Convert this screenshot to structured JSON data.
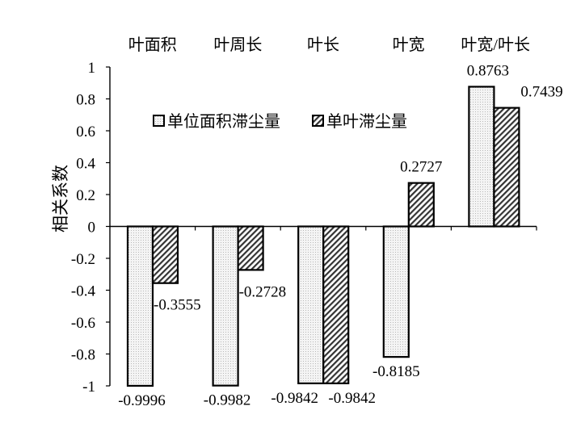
{
  "chart_data": {
    "type": "bar",
    "categories": [
      "叶面积",
      "叶周长",
      "叶长",
      "叶宽",
      "叶宽/叶长"
    ],
    "series": [
      {
        "name": "单位面积滞尘量",
        "values": [
          -0.9996,
          -0.9982,
          -0.9842,
          -0.8185,
          0.8763
        ]
      },
      {
        "name": "单叶滞尘量",
        "values": [
          -0.3555,
          -0.2728,
          -0.9842,
          0.2727,
          0.7439
        ]
      }
    ],
    "data_labels": [
      [
        "-0.9996",
        "-0.9982",
        "-0.9842",
        "-0.8185",
        "0.8763"
      ],
      [
        "-0.3555",
        "-0.2728",
        "-0.9842",
        "0.2727",
        "0.7439"
      ]
    ],
    "ylabel": "相关系数",
    "xlabel": "",
    "ylim": [
      -1,
      1
    ],
    "yticks": [
      "1",
      "0.8",
      "0.6",
      "0.4",
      "0.2",
      "0",
      "-0.2",
      "-0.4",
      "-0.6",
      "-0.8",
      "-1"
    ],
    "ytick_values": [
      1,
      0.8,
      0.6,
      0.4,
      0.2,
      0,
      -0.2,
      -0.4,
      -0.6,
      -0.8,
      -1
    ],
    "grid": false,
    "legend_position": "top-center",
    "category_labels_position": "top",
    "colors": {
      "axis": "#000000",
      "series1_fill": "#f2f2f2",
      "series2_fill": "#ffffff",
      "series2_hatch": "#000000"
    },
    "patterns": [
      "dotted",
      "diagonal-hatch"
    ]
  }
}
